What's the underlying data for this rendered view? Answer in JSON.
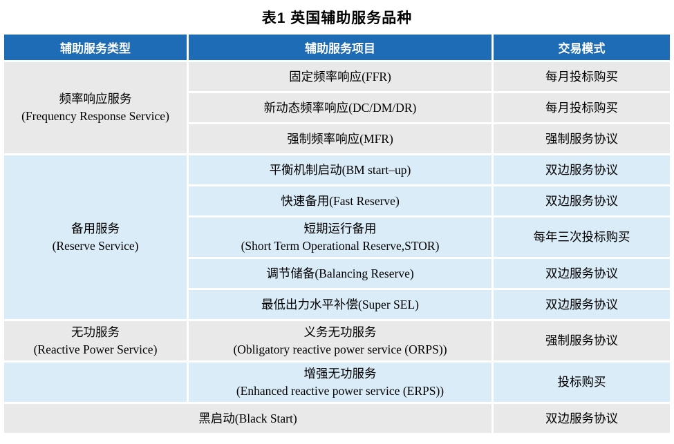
{
  "title": "表1  英国辅助服务品种",
  "table": {
    "headers": {
      "type": "辅助服务类型",
      "item": "辅助服务项目",
      "mode": "交易模式"
    },
    "colors": {
      "header_bg": "#1e6cb5",
      "header_text": "#ffffff",
      "row_gray": "#e9e9e9",
      "row_blue": "#d9ecf8"
    },
    "cells": {
      "freq_type": "频率响应服务\n(Frequency Response Service)",
      "ffr_item": "固定频率响应(FFR)",
      "ffr_mode": "每月投标购买",
      "dcdmdr_item": "新动态频率响应(DC/DM/DR)",
      "dcdmdr_mode": "每月投标购买",
      "mfr_item": "强制频率响应(MFR)",
      "mfr_mode": "强制服务协议",
      "reserve_type": "备用服务\n(Reserve Service)",
      "bm_item": "平衡机制启动(BM start–up)",
      "bm_mode": "双边服务协议",
      "fast_item": "快速备用(Fast Reserve)",
      "fast_mode": "双边服务协议",
      "stor_item": "短期运行备用\n(Short Term Operational Reserve,STOR)",
      "stor_mode": "每年三次投标购买",
      "balancing_item": "调节储备(Balancing Reserve)",
      "balancing_mode": "双边服务协议",
      "supersel_item": "最低出力水平补偿(Super SEL)",
      "supersel_mode": "双边服务协议",
      "reactive_type": "无功服务\n(Reactive Power Service)",
      "orps_item": "义务无功服务\n(Obligatory reactive power service (ORPS))",
      "orps_mode": "强制服务协议",
      "erps_item": "增强无功服务\n(Enhanced reactive power service (ERPS))",
      "erps_mode": "投标购买",
      "blackstart_item": "黑启动(Black Start)",
      "blackstart_mode": "双边服务协议"
    }
  }
}
